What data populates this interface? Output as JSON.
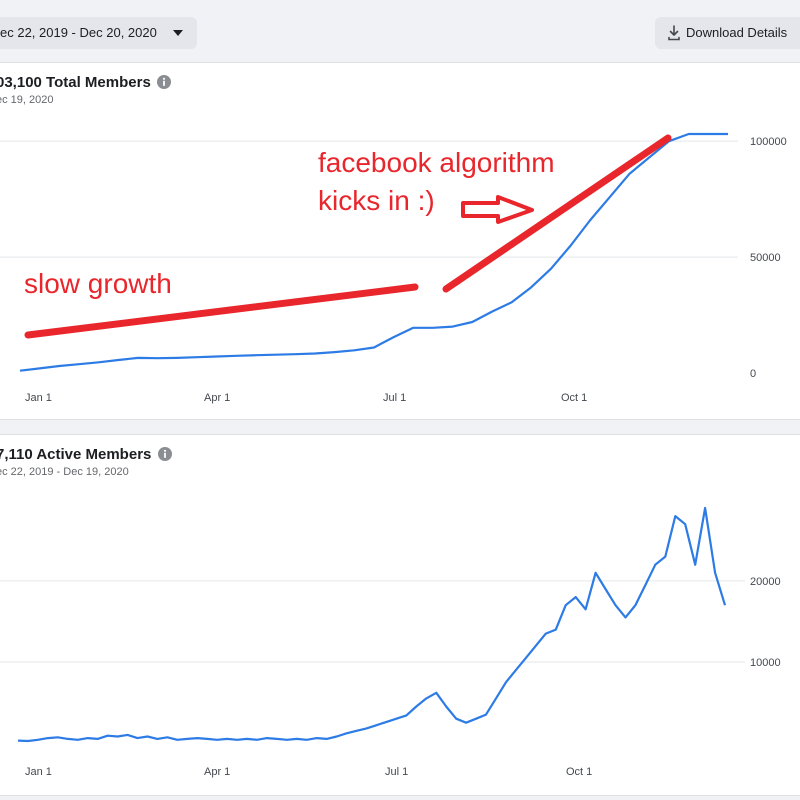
{
  "header": {
    "date_range": "ec 22, 2019 - Dec 20, 2020",
    "download_label": "Download Details"
  },
  "colors": {
    "line": "#2d7be5",
    "annotation": "#e8262b",
    "grid": "#e4e6eb"
  },
  "icons": {
    "info": "info-icon",
    "download": "download-icon",
    "dropdown": "caret-down-icon"
  },
  "annotations": {
    "slow_growth": "slow growth",
    "algorithm_line1": "facebook algorithm",
    "algorithm_line2": "kicks in :)"
  },
  "chart_data": [
    {
      "type": "line",
      "title": "03,100 Total Members",
      "subtitle": "ec 19, 2020",
      "x_ticks": [
        "Jan 1",
        "Apr 1",
        "Jul 1",
        "Oct 1"
      ],
      "y_ticks": [
        0,
        50000,
        100000
      ],
      "ylim": [
        0,
        103100
      ],
      "grid": true,
      "y_axis_side": "right",
      "x": [
        0,
        10,
        20,
        30,
        40,
        50,
        60,
        70,
        80,
        90,
        100,
        110,
        120,
        130,
        140,
        150,
        160,
        170,
        180,
        190,
        200,
        210,
        220,
        230,
        240,
        250,
        260,
        270,
        280,
        290,
        300,
        310,
        320,
        330,
        340,
        350,
        360
      ],
      "values": [
        1000,
        2000,
        3000,
        3800,
        4600,
        5600,
        6500,
        6400,
        6500,
        6800,
        7100,
        7400,
        7700,
        7900,
        8100,
        8400,
        9000,
        9800,
        11000,
        15500,
        19500,
        19500,
        20000,
        22000,
        26500,
        30500,
        37000,
        45000,
        55000,
        66000,
        76000,
        86000,
        93000,
        100000,
        103100,
        103100,
        103100
      ]
    },
    {
      "type": "line",
      "title": "7,110 Active Members",
      "subtitle": "ec 22, 2019 - Dec 19, 2020",
      "x_ticks": [
        "Jan 1",
        "Apr 1",
        "Jul 1",
        "Oct 1"
      ],
      "y_ticks": [
        10000,
        20000
      ],
      "ylim": [
        0,
        29000
      ],
      "grid": true,
      "y_axis_side": "right",
      "x": [
        0,
        5,
        10,
        15,
        20,
        25,
        30,
        35,
        40,
        45,
        50,
        55,
        60,
        65,
        70,
        75,
        80,
        85,
        90,
        95,
        100,
        105,
        110,
        115,
        120,
        125,
        130,
        135,
        140,
        145,
        150,
        155,
        160,
        165,
        170,
        175,
        180,
        185,
        190,
        195,
        200,
        205,
        210,
        215,
        220,
        225,
        230,
        235,
        240,
        245,
        250,
        255,
        260,
        265,
        270,
        275,
        280,
        285,
        290,
        295,
        300,
        305,
        310,
        315,
        320,
        325,
        330,
        335,
        340,
        345,
        350,
        355
      ],
      "values": [
        300,
        250,
        400,
        600,
        700,
        500,
        400,
        600,
        500,
        900,
        800,
        1000,
        600,
        800,
        500,
        700,
        400,
        500,
        600,
        500,
        400,
        500,
        400,
        500,
        400,
        600,
        500,
        400,
        500,
        400,
        600,
        500,
        800,
        1200,
        1500,
        1800,
        2200,
        2600,
        3000,
        3400,
        4500,
        5500,
        6200,
        4500,
        3000,
        2500,
        3000,
        3500,
        5500,
        7500,
        9000,
        10500,
        12000,
        13500,
        14000,
        17000,
        18000,
        16500,
        21000,
        19000,
        17000,
        15500,
        17000,
        19500,
        22000,
        23000,
        28000,
        27000,
        22000,
        29000,
        21000,
        17000
      ]
    }
  ]
}
